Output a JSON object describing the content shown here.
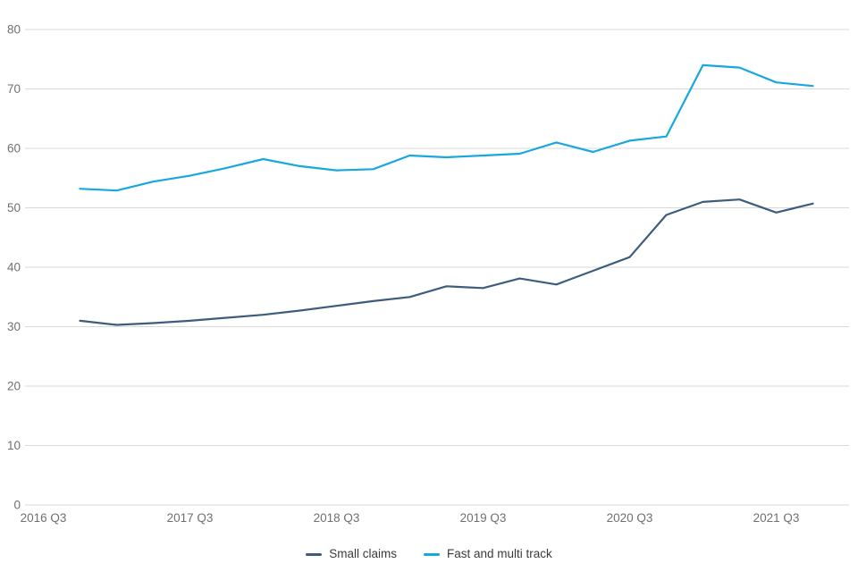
{
  "page": {
    "background_color": "#ffffff"
  },
  "chart_data": {
    "type": "line",
    "x_unit": "quarter",
    "x": [
      "2016 Q4",
      "2017 Q1",
      "2017 Q2",
      "2017 Q3",
      "2017 Q4",
      "2018 Q1",
      "2018 Q2",
      "2018 Q3",
      "2018 Q4",
      "2019 Q1",
      "2019 Q2",
      "2019 Q3",
      "2019 Q4",
      "2020 Q1",
      "2020 Q2",
      "2020 Q3",
      "2020 Q4",
      "2021 Q1",
      "2021 Q2",
      "2021 Q3",
      "2021 Q4"
    ],
    "x_start_quarter_offset": 1,
    "x_tick_labels": [
      "2016 Q3",
      "2017 Q3",
      "2018 Q3",
      "2019 Q3",
      "2020 Q3",
      "2021 Q3"
    ],
    "x_tick_quarter_offsets": [
      0,
      4,
      8,
      12,
      16,
      20
    ],
    "y_ticks": [
      0,
      10,
      20,
      30,
      40,
      50,
      60,
      70,
      80
    ],
    "ylim": [
      0,
      80
    ],
    "grid": "horizontal",
    "gridline_color": "#d9d9d9",
    "tick_label_color": "#6e7071",
    "legend_position": "bottom-center",
    "series": [
      {
        "name": "Small claims",
        "color": "#3d5c7e",
        "values": [
          31.0,
          30.3,
          30.6,
          31.0,
          31.5,
          32.0,
          32.7,
          33.5,
          34.3,
          35.0,
          36.8,
          36.5,
          38.1,
          37.1,
          39.4,
          41.7,
          48.8,
          51.0,
          51.4,
          49.2,
          50.7
        ]
      },
      {
        "name": "Fast and multi track",
        "color": "#18a7de",
        "values": [
          53.2,
          52.9,
          54.4,
          55.4,
          56.7,
          58.2,
          57.0,
          56.3,
          56.5,
          58.8,
          58.5,
          58.8,
          59.1,
          61.0,
          59.4,
          61.3,
          62.0,
          74.0,
          73.6,
          71.1,
          70.5
        ]
      }
    ]
  },
  "legend": {
    "items": [
      {
        "label": "Small claims"
      },
      {
        "label": "Fast and multi track"
      }
    ]
  }
}
